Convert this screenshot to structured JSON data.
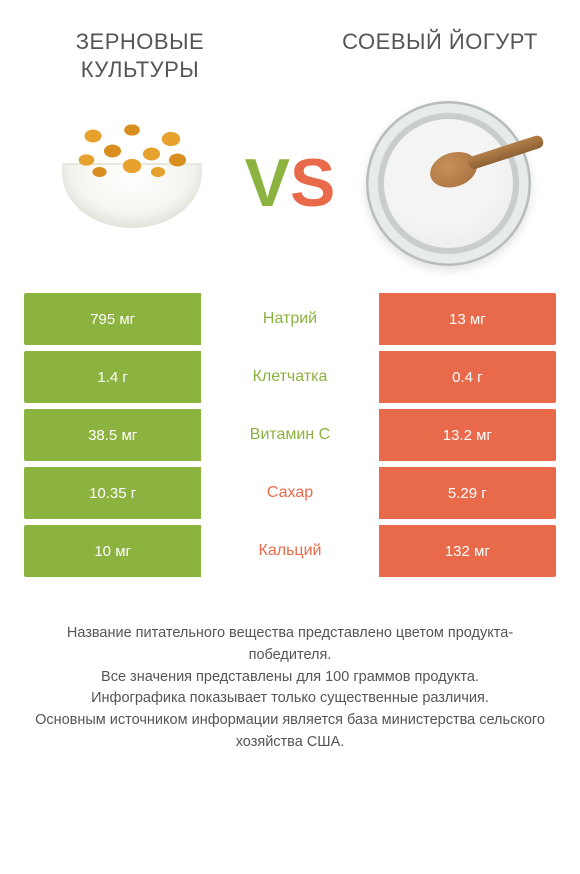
{
  "header": {
    "left_title": "Зерновые культуры",
    "right_title": "Соевый йогурт"
  },
  "vs": {
    "v": "V",
    "s": "S"
  },
  "colors": {
    "left": "#8cb23f",
    "right": "#e96a4a",
    "text": "#555555",
    "background": "#ffffff"
  },
  "illustrations": {
    "left": {
      "name": "cereal-bowl-image",
      "kind": "cereal-bowl"
    },
    "right": {
      "name": "soy-yogurt-image",
      "kind": "yogurt-bowl-with-spoon"
    }
  },
  "comparison": {
    "rows": [
      {
        "left": "795 мг",
        "label": "Натрий",
        "right": "13 мг",
        "winner": "left"
      },
      {
        "left": "1.4 г",
        "label": "Клетчатка",
        "right": "0.4 г",
        "winner": "left"
      },
      {
        "left": "38.5 мг",
        "label": "Витамин C",
        "right": "13.2 мг",
        "winner": "left"
      },
      {
        "left": "10.35 г",
        "label": "Сахар",
        "right": "5.29 г",
        "winner": "right"
      },
      {
        "left": "10 мг",
        "label": "Кальций",
        "right": "132 мг",
        "winner": "right"
      }
    ]
  },
  "footnote": {
    "lines": [
      "Название питательного вещества представлено цветом продукта-победителя.",
      "Все значения представлены для 100 граммов продукта.",
      "Инфографика показывает только существенные различия.",
      "Основным источником информации является база министерства сельского хозяйства США."
    ]
  }
}
